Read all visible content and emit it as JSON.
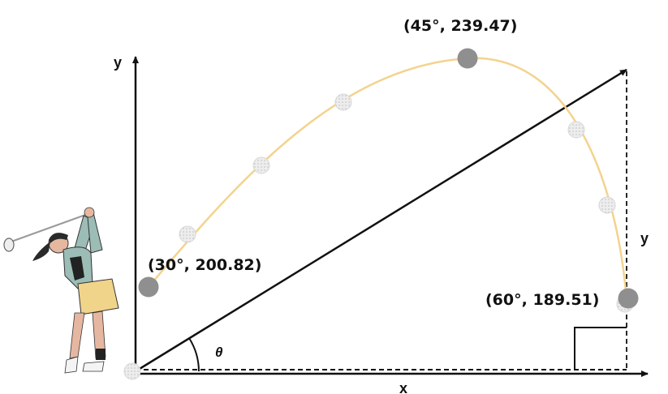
{
  "axes": {
    "y_label": "y",
    "x_label": "x",
    "side_label": "y",
    "angle_label": "θ"
  },
  "points": [
    {
      "label": "(30°, 200.82)",
      "angle": 30,
      "value": 200.82
    },
    {
      "label": "(45°, 239.47)",
      "angle": 45,
      "value": 239.47
    },
    {
      "label": "(60°, 189.51)",
      "angle": 60,
      "value": 189.51
    }
  ],
  "colors": {
    "trajectory": "#f3d38e",
    "marker": "#8f8f8f",
    "axis": "#111111"
  },
  "icons": [
    "golfer-illustration",
    "golf-ball-icon"
  ]
}
